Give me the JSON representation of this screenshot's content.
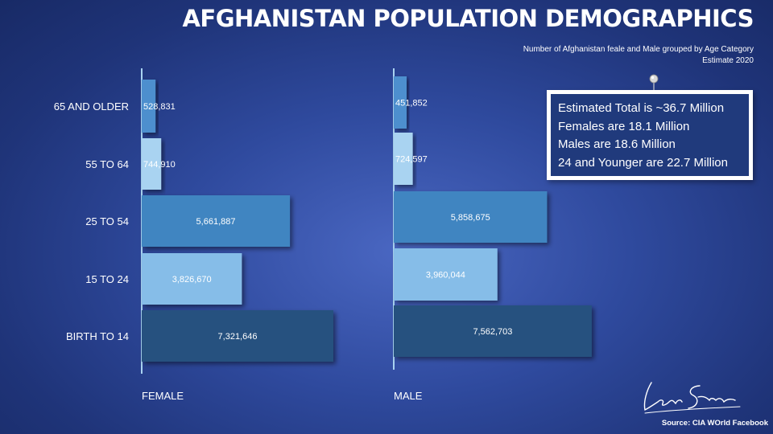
{
  "title": "AFGHANISTAN POPULATION DEMOGRAPHICS",
  "subtitle_line1": "Number of Afghanistan feale and Male grouped by Age Category",
  "subtitle_line2": "Estimate 2020",
  "callout_lines": [
    "Estimated Total is ~36.7 Million",
    "Females are 18.1 Million",
    "Males are 18.6 Million",
    "24 and Younger are 22.7 Million"
  ],
  "source": "Source: CIA WOrld Facebook",
  "signature_text": "Leon Shirvaian",
  "chart_data": {
    "type": "bar",
    "orientation": "horizontal",
    "categories": [
      "65 AND OLDER",
      "55 TO 64",
      "25 TO 54",
      "15 TO 24",
      "BIRTH TO 14"
    ],
    "series": [
      {
        "name": "FEMALE",
        "values": [
          528831,
          744910,
          5661887,
          3826670,
          7321646
        ],
        "labels": [
          "528,831",
          "744,910",
          "5,661,887",
          "3,826,670",
          "7,321,646"
        ]
      },
      {
        "name": "MALE",
        "values": [
          451852,
          724597,
          5858675,
          3960044,
          7562703
        ],
        "labels": [
          "451,852",
          "724,597",
          "5,858,675",
          "3,960,044",
          "7,562,703"
        ]
      }
    ],
    "colors": [
      "#4d8fce",
      "#a9d3f1",
      "#3f85c1",
      "#86bde8",
      "#25517f"
    ],
    "grid": false,
    "legend": "none"
  }
}
